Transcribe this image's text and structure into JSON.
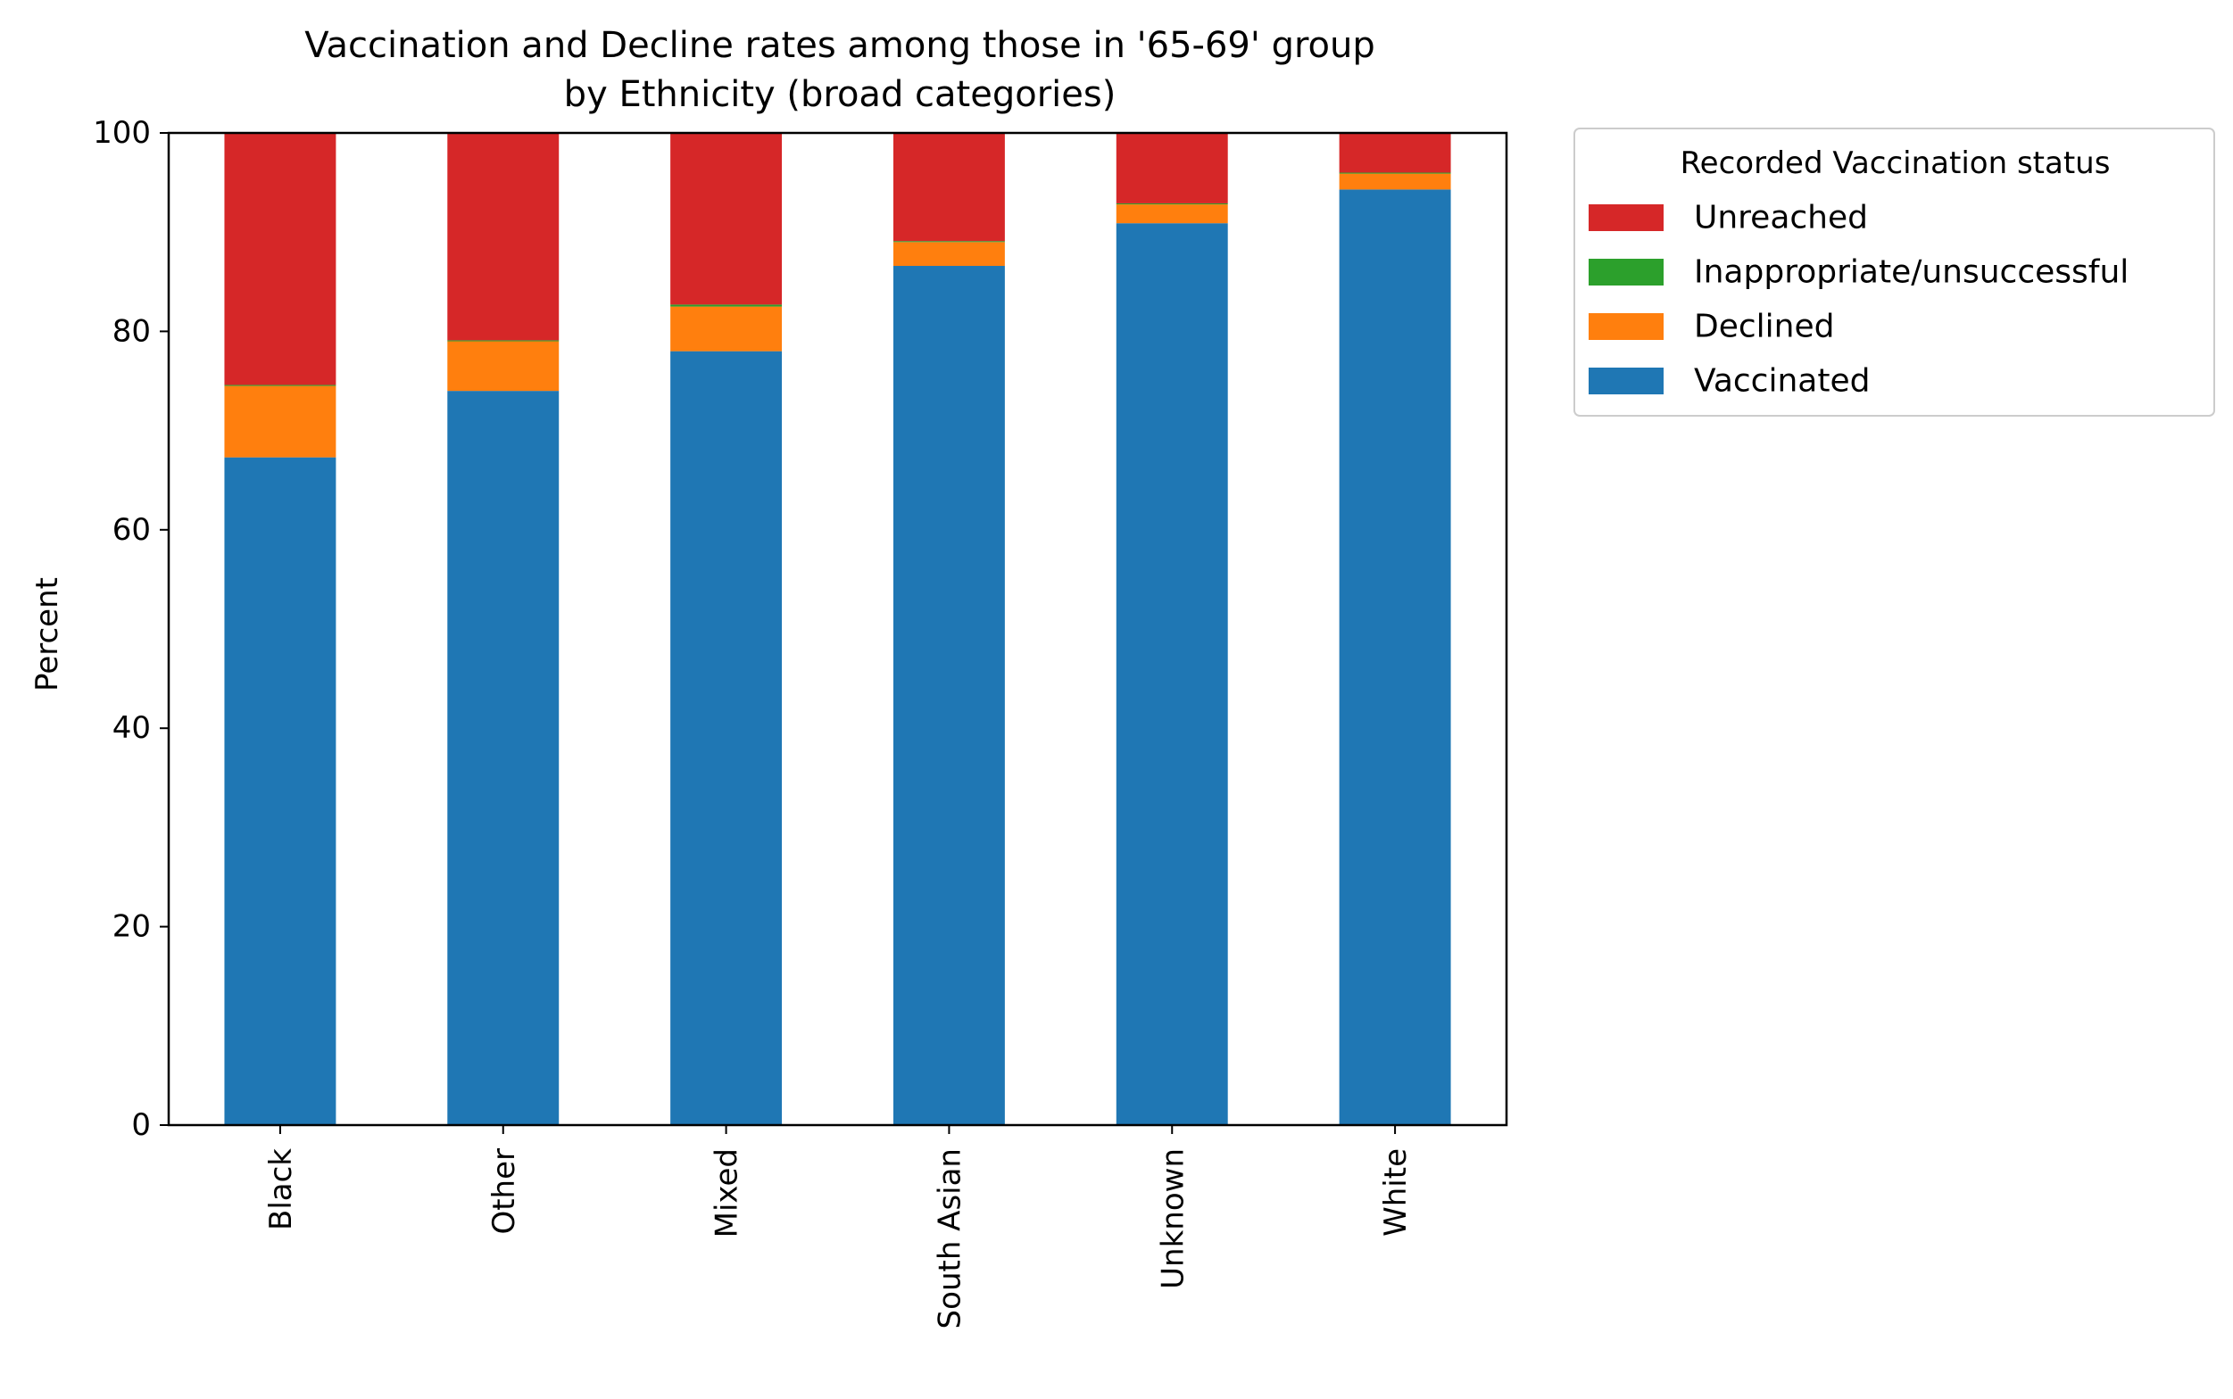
{
  "chart_data": {
    "type": "bar",
    "stacked": true,
    "title": "Vaccination and Decline rates among those in '65-69' group",
    "subtitle": "by Ethnicity (broad categories)",
    "xlabel": "",
    "ylabel": "Percent",
    "ylim": [
      0,
      100
    ],
    "yticks": [
      "0",
      "20",
      "40",
      "60",
      "80",
      "100"
    ],
    "categories": [
      "Black",
      "Other",
      "Mixed",
      "South Asian",
      "Unknown",
      "White"
    ],
    "grid": false,
    "legend": {
      "title": "Recorded Vaccination status",
      "placement": "outside top-right",
      "entries": [
        "Unreached",
        "Inappropriate/unsuccessful",
        "Declined",
        "Vaccinated"
      ]
    },
    "series": [
      {
        "name": "Vaccinated",
        "color": "#1f77b4",
        "values": [
          67.3,
          74.0,
          78.0,
          86.6,
          90.9,
          94.3
        ]
      },
      {
        "name": "Declined",
        "color": "#ff7f0e",
        "values": [
          7.2,
          5.0,
          4.5,
          2.4,
          1.9,
          1.6
        ]
      },
      {
        "name": "Inappropriate/unsuccessful",
        "color": "#2ca02c",
        "values": [
          0.1,
          0.1,
          0.2,
          0.1,
          0.1,
          0.1
        ]
      },
      {
        "name": "Unreached",
        "color": "#d62728",
        "values": [
          25.4,
          20.9,
          17.3,
          10.9,
          7.1,
          4.0
        ]
      }
    ]
  }
}
